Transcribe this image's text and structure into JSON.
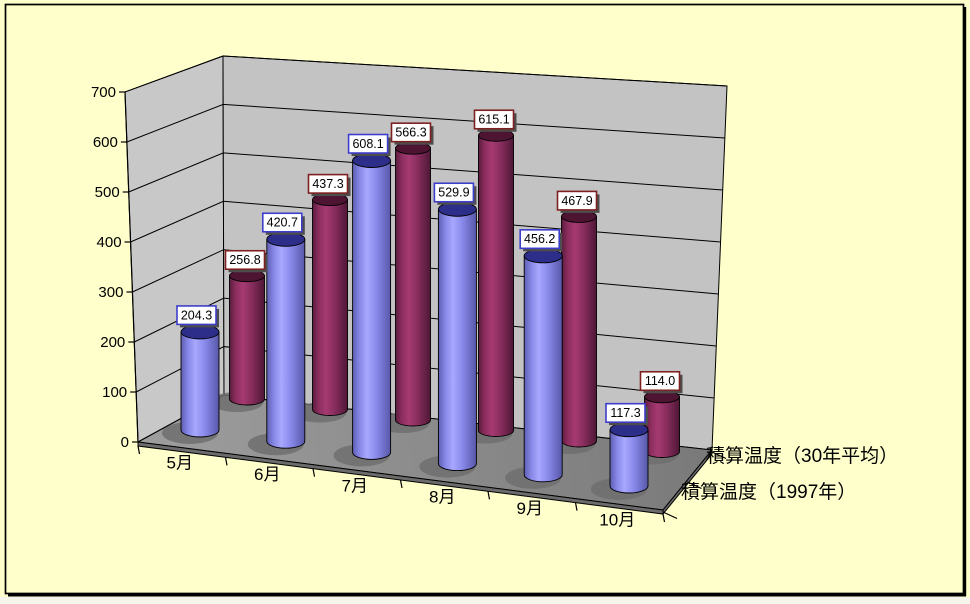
{
  "window": {
    "background_color": "#FFFFCC",
    "border_color": "#000000"
  },
  "chart_data": {
    "type": "bar",
    "style": "3d-cylinder",
    "title": "",
    "categories": [
      "5月",
      "6月",
      "7月",
      "8月",
      "9月",
      "10月"
    ],
    "series": [
      {
        "name": "積算温度（30年平均）",
        "row": "back",
        "color": "#993366",
        "label_border": "#7E2020",
        "values": [
          256.8,
          437.3,
          566.3,
          615.1,
          467.9,
          114.0
        ]
      },
      {
        "name": "積算温度（1997年）",
        "row": "front",
        "color": "#9999FF",
        "label_border": "#3E3ECC",
        "values": [
          204.3,
          420.7,
          608.1,
          529.9,
          456.2,
          117.3
        ]
      }
    ],
    "ylim": [
      0,
      700
    ],
    "ytick_interval": 100,
    "ytick_labels": [
      "0",
      "100",
      "200",
      "300",
      "400",
      "500",
      "600",
      "700"
    ],
    "grid": true,
    "data_labels_shown": true,
    "data_label_format": "0.0",
    "legend_position": "series-axis-right",
    "colors": {
      "chart_background": "#FFFFCC",
      "wall": "#C3C3C3",
      "floor_light": "#9E9E9E",
      "floor_dark": "#7A7A7A",
      "floor_side": "#6B6B6B",
      "cylinder_shadow": "#6F6F6F",
      "label_background": "#FFFFFF",
      "label_shadow": "#4D4D4D",
      "text": "#000000"
    }
  }
}
